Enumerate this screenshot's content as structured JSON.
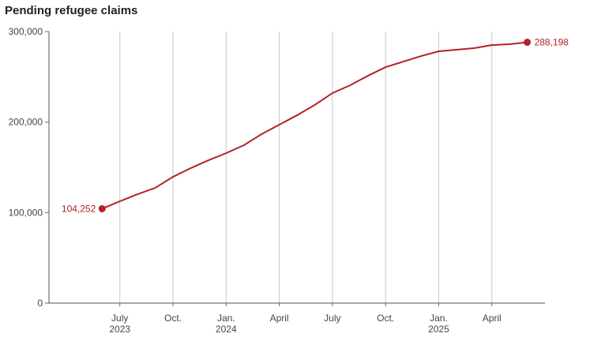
{
  "chart_data": {
    "type": "line",
    "title": "Pending refugee claims",
    "x": [
      "2023-06",
      "2023-07",
      "2023-08",
      "2023-09",
      "2023-10",
      "2023-11",
      "2023-12",
      "2024-01",
      "2024-02",
      "2024-03",
      "2024-04",
      "2024-05",
      "2024-06",
      "2024-07",
      "2024-08",
      "2024-09",
      "2024-10",
      "2024-11",
      "2024-12",
      "2025-01",
      "2025-02",
      "2025-03",
      "2025-04",
      "2025-05",
      "2025-06"
    ],
    "series": [
      {
        "color": "#b5202a",
        "values": [
          104252,
          112500,
          120300,
          127300,
          139500,
          149100,
          157800,
          165700,
          174400,
          186600,
          197100,
          207500,
          218900,
          232000,
          240700,
          251100,
          260700,
          266800,
          272900,
          278200,
          279900,
          281700,
          285100,
          286000,
          288198
        ],
        "value_labels": [
          "104,252",
          null,
          null,
          null,
          null,
          null,
          null,
          null,
          null,
          null,
          null,
          null,
          null,
          null,
          null,
          null,
          null,
          null,
          null,
          null,
          null,
          null,
          null,
          null,
          "288,198"
        ]
      }
    ],
    "xlim": [
      "2023-03",
      "2025-07"
    ],
    "xticks": [
      {
        "value": "2023-07",
        "label": "July\n2023"
      },
      {
        "value": "2023-10",
        "label": "Oct."
      },
      {
        "value": "2024-01",
        "label": "Jan.\n2024"
      },
      {
        "value": "2024-04",
        "label": "April"
      },
      {
        "value": "2024-07",
        "label": "July"
      },
      {
        "value": "2024-10",
        "label": "Oct."
      },
      {
        "value": "2025-01",
        "label": "Jan.\n2025"
      },
      {
        "value": "2025-04",
        "label": "April"
      }
    ],
    "ylim": [
      0,
      300000
    ],
    "yticks": [
      0,
      {
        "value": 100000,
        "label": "100,000"
      },
      {
        "value": 200000,
        "label": "200,000"
      },
      {
        "value": 300000,
        "label": "300,000"
      }
    ],
    "grid": "x"
  }
}
